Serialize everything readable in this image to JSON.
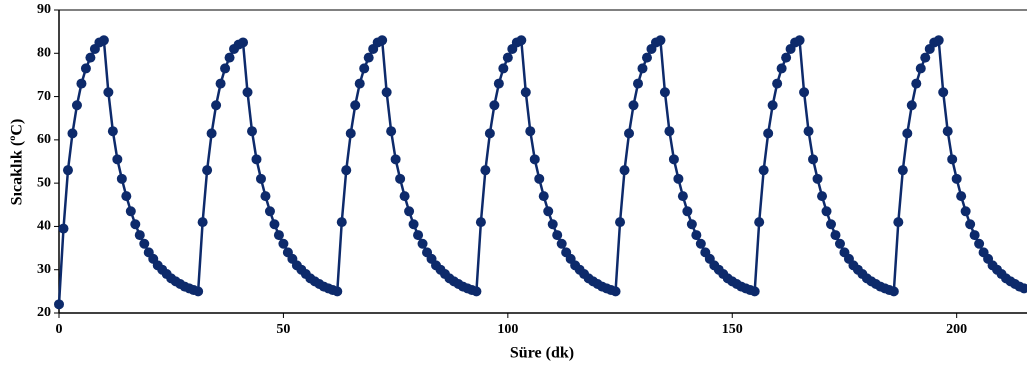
{
  "chart_data": {
    "type": "line",
    "xlabel": "Süre (dk)",
    "ylabel": "Sıcaklık (ºC)",
    "xlim": [
      0,
      215
    ],
    "ylim": [
      20,
      90
    ],
    "xticks": [
      0,
      50,
      100,
      150,
      200
    ],
    "yticks": [
      20,
      30,
      40,
      50,
      60,
      70,
      80,
      90
    ],
    "markers": true,
    "x": [
      0,
      1,
      2,
      3,
      4,
      5,
      6,
      7,
      8,
      9,
      10,
      11,
      12,
      13,
      14,
      15,
      16,
      17,
      18,
      19,
      20,
      21,
      22,
      23,
      24,
      25,
      26,
      27,
      28,
      29,
      30,
      31,
      32,
      33,
      34,
      35,
      36,
      37,
      38,
      39,
      40,
      41,
      42,
      43,
      44,
      45,
      46,
      47,
      48,
      49,
      50,
      51,
      52,
      53,
      54,
      55,
      56,
      57,
      58,
      59,
      60,
      61,
      62,
      63,
      64,
      65,
      66,
      67,
      68,
      69,
      70,
      71,
      72,
      73,
      74,
      75,
      76,
      77,
      78,
      79,
      80,
      81,
      82,
      83,
      84,
      85,
      86,
      87,
      88,
      89,
      90,
      91,
      92,
      93,
      94,
      95,
      96,
      97,
      98,
      99,
      100,
      101,
      102,
      103,
      104,
      105,
      106,
      107,
      108,
      109,
      110,
      111,
      112,
      113,
      114,
      115,
      116,
      117,
      118,
      119,
      120,
      121,
      122,
      123,
      124,
      125,
      126,
      127,
      128,
      129,
      130,
      131,
      132,
      133,
      134,
      135,
      136,
      137,
      138,
      139,
      140,
      141,
      142,
      143,
      144,
      145,
      146,
      147,
      148,
      149,
      150,
      151,
      152,
      153,
      154,
      155,
      156,
      157,
      158,
      159,
      160,
      161,
      162,
      163,
      164,
      165,
      166,
      167,
      168,
      169,
      170,
      171,
      172,
      173,
      174,
      175,
      176,
      177,
      178,
      179,
      180,
      181,
      182,
      183,
      184,
      185,
      186,
      187,
      188,
      189,
      190,
      191,
      192,
      193,
      194,
      195,
      196,
      197,
      198,
      199,
      200,
      201,
      202,
      203,
      204,
      205,
      206,
      207,
      208,
      209,
      210,
      211,
      212,
      213,
      214,
      215
    ],
    "series": [
      {
        "color": "#0d2a6b",
        "values": [
          22,
          39.5,
          53,
          61.5,
          68,
          73,
          76.5,
          79,
          81,
          82.5,
          83,
          71,
          62,
          55.5,
          51,
          47,
          43.5,
          40.5,
          38,
          36,
          34,
          32.5,
          31,
          30,
          29,
          28,
          27.3,
          26.7,
          26.1,
          25.7,
          25.3,
          25,
          41,
          53,
          61.5,
          68,
          73,
          76.5,
          79,
          81,
          82,
          82.5,
          71,
          62,
          55.5,
          51,
          47,
          43.5,
          40.5,
          38,
          36,
          34,
          32.5,
          31,
          30,
          29,
          28,
          27.3,
          26.7,
          26.1,
          25.7,
          25.3,
          25,
          41,
          53,
          61.5,
          68,
          73,
          76.5,
          79,
          81,
          82.5,
          83,
          71,
          62,
          55.5,
          51,
          47,
          43.5,
          40.5,
          38,
          36,
          34,
          32.5,
          31,
          30,
          29,
          28,
          27.3,
          26.7,
          26.1,
          25.7,
          25.3,
          25,
          41,
          53,
          61.5,
          68,
          73,
          76.5,
          79,
          81,
          82.5,
          83,
          71,
          62,
          55.5,
          51,
          47,
          43.5,
          40.5,
          38,
          36,
          34,
          32.5,
          31,
          30,
          29,
          28,
          27.3,
          26.7,
          26.1,
          25.7,
          25.3,
          25,
          41,
          53,
          61.5,
          68,
          73,
          76.5,
          79,
          81,
          82.5,
          83,
          71,
          62,
          55.5,
          51,
          47,
          43.5,
          40.5,
          38,
          36,
          34,
          32.5,
          31,
          30,
          29,
          28,
          27.3,
          26.7,
          26.1,
          25.7,
          25.3,
          25,
          41,
          53,
          61.5,
          68,
          73,
          76.5,
          79,
          81,
          82.5,
          83,
          71,
          62,
          55.5,
          51,
          47,
          43.5,
          40.5,
          38,
          36,
          34,
          32.5,
          31,
          30,
          29,
          28,
          27.3,
          26.7,
          26.1,
          25.7,
          25.3,
          25,
          41,
          53,
          61.5,
          68,
          73,
          76.5,
          79,
          81,
          82.5,
          83,
          71,
          62,
          55.5,
          51,
          47,
          43.5,
          40.5,
          38,
          36,
          34,
          32.5,
          31,
          30,
          29,
          28,
          27.3,
          26.7,
          26.1,
          25.7
        ]
      }
    ]
  }
}
